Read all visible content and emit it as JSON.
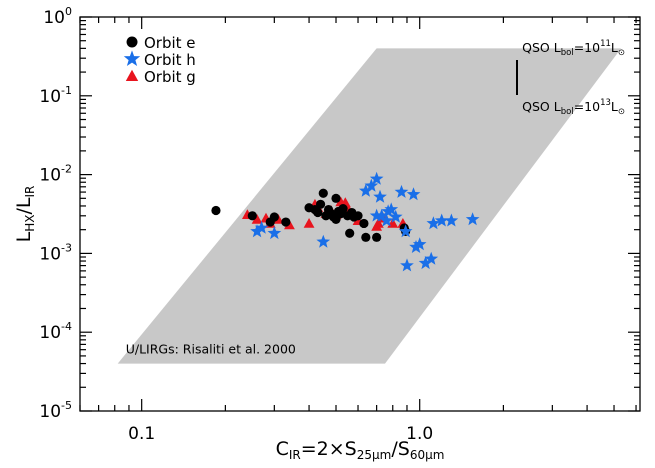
{
  "chart_data": {
    "type": "scatter",
    "x_scale": "log",
    "y_scale": "log",
    "xlim": [
      0.06,
      6.2
    ],
    "ylim": [
      1e-05,
      1
    ],
    "x_ticks": [
      {
        "value": 0.1,
        "label": "0.1"
      },
      {
        "value": 1.0,
        "label": "1.0"
      }
    ],
    "y_ticks": [
      {
        "value": 1e-05,
        "base": "10",
        "exp": "-5"
      },
      {
        "value": 0.0001,
        "base": "10",
        "exp": "-4"
      },
      {
        "value": 0.001,
        "base": "10",
        "exp": "-3"
      },
      {
        "value": 0.01,
        "base": "10",
        "exp": "-2"
      },
      {
        "value": 0.1,
        "base": "10",
        "exp": "-1"
      },
      {
        "value": 1,
        "base": "10",
        "exp": "0"
      }
    ],
    "xlabel": {
      "main": "C",
      "sub1": "IR",
      "mid": "=2×S",
      "sub2": "25μm",
      "slash": "/S",
      "sub3": "60μm"
    },
    "ylabel": {
      "main": "L",
      "sub1": "HX",
      "slash": "/L",
      "sub2": "IR"
    },
    "region": {
      "label": "U/LIRGs: Risaliti et al. 2000",
      "color": "#c8c8c8",
      "polygon": [
        [
          0.082,
          4e-05
        ],
        [
          0.75,
          4e-05
        ],
        [
          5.3,
          0.4
        ],
        [
          0.7,
          0.4
        ]
      ]
    },
    "annotations": {
      "top": {
        "text": "QSO L",
        "sub": "bol",
        "mid": "=10",
        "sup": "11",
        "tail": "L",
        "sun": "⊙"
      },
      "bottom": {
        "text": "QSO L",
        "sub": "bol",
        "mid": "=10",
        "sup": "13",
        "tail": "L",
        "sun": "⊙"
      }
    },
    "series": [
      {
        "name": "Orbit e",
        "marker": "circle",
        "color": "#000000",
        "points": [
          [
            0.185,
            0.0035
          ],
          [
            0.25,
            0.003
          ],
          [
            0.29,
            0.0025
          ],
          [
            0.3,
            0.0029
          ],
          [
            0.33,
            0.0025
          ],
          [
            0.4,
            0.0038
          ],
          [
            0.42,
            0.0036
          ],
          [
            0.43,
            0.0033
          ],
          [
            0.44,
            0.0042
          ],
          [
            0.45,
            0.0058
          ],
          [
            0.46,
            0.003
          ],
          [
            0.47,
            0.0036
          ],
          [
            0.48,
            0.0032
          ],
          [
            0.49,
            0.0029
          ],
          [
            0.5,
            0.0027
          ],
          [
            0.5,
            0.005
          ],
          [
            0.51,
            0.0034
          ],
          [
            0.52,
            0.0032
          ],
          [
            0.53,
            0.0037
          ],
          [
            0.55,
            0.003
          ],
          [
            0.56,
            0.0018
          ],
          [
            0.57,
            0.0033
          ],
          [
            0.58,
            0.0029
          ],
          [
            0.6,
            0.003
          ],
          [
            0.63,
            0.0024
          ],
          [
            0.64,
            0.0016
          ],
          [
            0.7,
            0.0016
          ],
          [
            0.88,
            0.0021
          ],
          [
            0.89,
            0.0019
          ]
        ]
      },
      {
        "name": "Orbit h",
        "marker": "star",
        "color": "#1a6fe8",
        "points": [
          [
            0.26,
            0.0019
          ],
          [
            0.27,
            0.0021
          ],
          [
            0.3,
            0.0018
          ],
          [
            0.45,
            0.0014
          ],
          [
            0.64,
            0.0062
          ],
          [
            0.67,
            0.0072
          ],
          [
            0.7,
            0.0088
          ],
          [
            0.7,
            0.003
          ],
          [
            0.72,
            0.0052
          ],
          [
            0.73,
            0.003
          ],
          [
            0.76,
            0.0026
          ],
          [
            0.77,
            0.0034
          ],
          [
            0.79,
            0.0036
          ],
          [
            0.82,
            0.0029
          ],
          [
            0.86,
            0.006
          ],
          [
            0.89,
            0.0019
          ],
          [
            0.9,
            0.0007
          ],
          [
            0.95,
            0.0056
          ],
          [
            0.97,
            0.0012
          ],
          [
            1.0,
            0.0013
          ],
          [
            1.05,
            0.00075
          ],
          [
            1.1,
            0.00085
          ],
          [
            1.12,
            0.0024
          ],
          [
            1.2,
            0.0026
          ],
          [
            1.3,
            0.0026
          ],
          [
            1.55,
            0.0027
          ]
        ]
      },
      {
        "name": "Orbit g",
        "marker": "triangle",
        "color": "#e8141e",
        "points": [
          [
            0.24,
            0.0031
          ],
          [
            0.26,
            0.0027
          ],
          [
            0.28,
            0.0028
          ],
          [
            0.29,
            0.0024
          ],
          [
            0.31,
            0.0027
          ],
          [
            0.34,
            0.0023
          ],
          [
            0.4,
            0.0024
          ],
          [
            0.42,
            0.0042
          ],
          [
            0.43,
            0.0038
          ],
          [
            0.46,
            0.0032
          ],
          [
            0.48,
            0.0035
          ],
          [
            0.5,
            0.0031
          ],
          [
            0.52,
            0.0045
          ],
          [
            0.54,
            0.0044
          ],
          [
            0.55,
            0.0038
          ],
          [
            0.6,
            0.0026
          ],
          [
            0.7,
            0.0022
          ],
          [
            0.71,
            0.0024
          ],
          [
            0.74,
            0.0028
          ],
          [
            0.8,
            0.0024
          ],
          [
            0.87,
            0.0024
          ]
        ]
      }
    ],
    "legend": {
      "placement": "top-left"
    }
  }
}
